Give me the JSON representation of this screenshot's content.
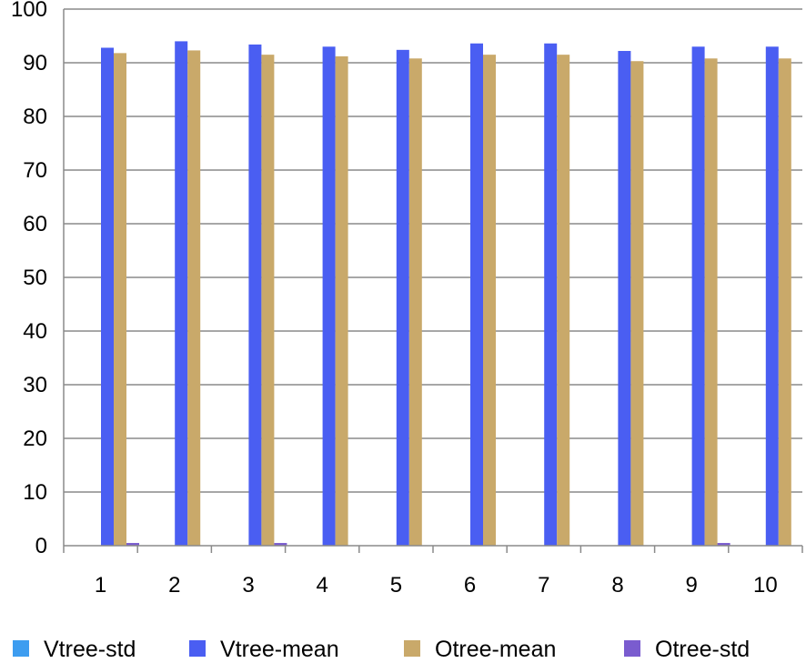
{
  "chart_data": {
    "type": "bar",
    "categories": [
      "1",
      "2",
      "3",
      "4",
      "5",
      "6",
      "7",
      "8",
      "9",
      "10"
    ],
    "series": [
      {
        "name": "Vtree-std",
        "color": "#3d9df0",
        "values": [
          0,
          0,
          0,
          0,
          0,
          0,
          0,
          0,
          0,
          0
        ]
      },
      {
        "name": "Vtree-mean",
        "color": "#4a5ef2",
        "values": [
          92.8,
          94.0,
          93.4,
          93.0,
          92.4,
          93.6,
          93.6,
          92.2,
          93.0,
          93.0
        ]
      },
      {
        "name": "Otree-mean",
        "color": "#c9a96a",
        "values": [
          91.8,
          92.3,
          91.5,
          91.2,
          90.8,
          91.5,
          91.5,
          90.3,
          90.8,
          90.8
        ]
      },
      {
        "name": "Otree-std",
        "color": "#7a5ccf",
        "values": [
          0.5,
          0,
          0.5,
          0,
          0,
          0,
          0,
          0,
          0.5,
          0
        ]
      }
    ],
    "yticks": [
      "0",
      "10",
      "20",
      "30",
      "40",
      "50",
      "60",
      "70",
      "80",
      "90",
      "100"
    ],
    "ylim": [
      0,
      100
    ],
    "grid": true,
    "legend_position": "bottom"
  }
}
